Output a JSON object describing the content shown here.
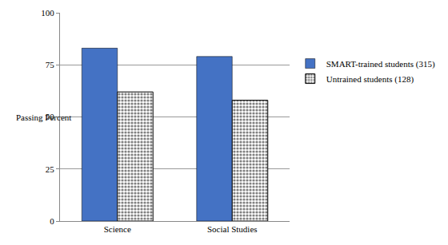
{
  "chart_data": {
    "type": "bar",
    "y_label": "Passing Percent",
    "categories": [
      "Science",
      "Social Studies"
    ],
    "series": [
      {
        "name": "SMART-trained students (315)",
        "color": "#4472c4",
        "values": [
          83,
          79
        ]
      },
      {
        "name": "Untrained students (128)",
        "color": "#808080",
        "marker": "dotted",
        "values": [
          62,
          58
        ]
      }
    ],
    "ylim": [
      0,
      100
    ],
    "yticks": [
      0,
      25,
      50,
      75,
      100
    ],
    "grid": true,
    "legend": "right"
  }
}
